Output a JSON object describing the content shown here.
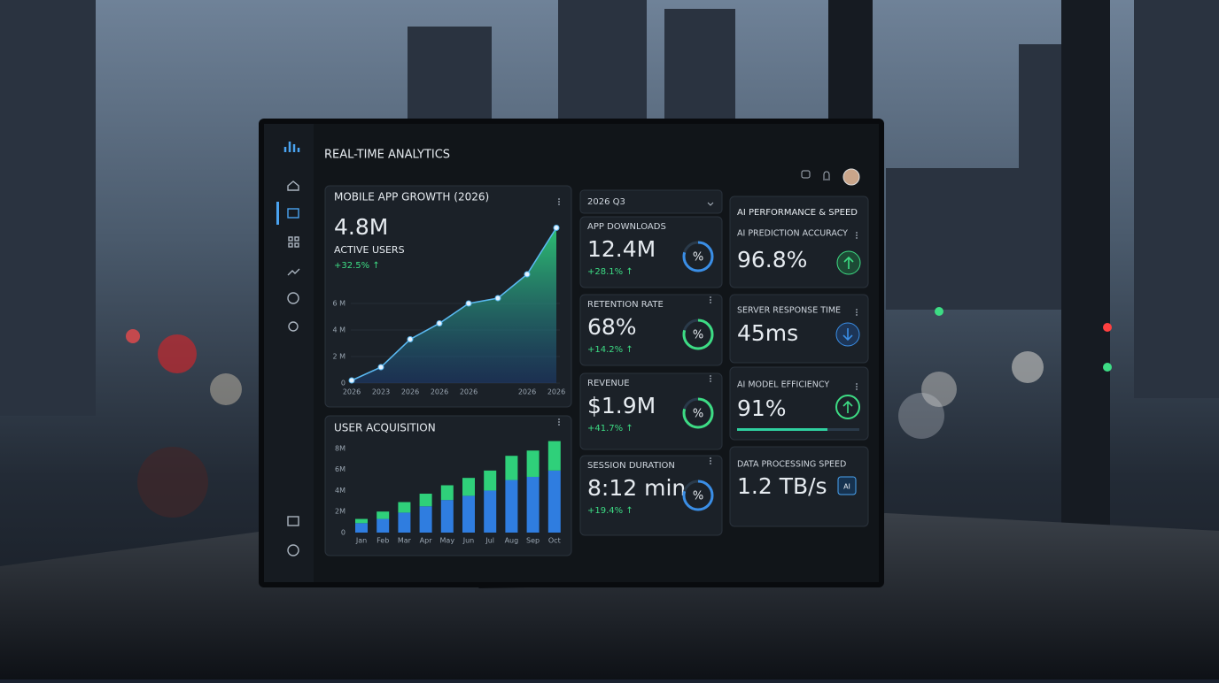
{
  "header": {
    "title": "REAL-TIME ANALYTICS"
  },
  "chart_data": [
    {
      "type": "line",
      "title": "MOBILE APP GROWTH (2026)",
      "annotations": [
        "4.8M",
        "ACTIVE USERS",
        "+32.5% ↑"
      ],
      "categories": [
        "2026",
        "2023",
        "2026",
        "2026",
        "2026",
        null,
        "2026",
        "2026"
      ],
      "series": [
        {
          "color": "#5ab8f0",
          "values": [
            0.2,
            1.2,
            3.3,
            4.5,
            6.0,
            6.4,
            8.2,
            11.7
          ]
        }
      ],
      "ylim": [
        0,
        12
      ],
      "yticks": [
        0,
        {
          "value": 2,
          "label": "2 M"
        },
        {
          "value": 4,
          "label": "4 M"
        },
        {
          "value": 6,
          "label": "6 M"
        }
      ]
    },
    {
      "type": "bar",
      "stacked": true,
      "title": "USER ACQUISITION",
      "categories": [
        "Jan",
        "Feb",
        "Mar",
        "Apr",
        "May",
        "Jun",
        "Jul",
        "Aug",
        "Sep",
        "Oct"
      ],
      "series": [
        {
          "color": "#2f7de0",
          "values": [
            0.9,
            1.3,
            1.9,
            2.5,
            3.1,
            3.5,
            4.0,
            5.0,
            5.3,
            5.9
          ]
        },
        {
          "color": "#2fd07a",
          "values": [
            0.4,
            0.7,
            1.0,
            1.2,
            1.4,
            1.7,
            1.9,
            2.3,
            2.5,
            2.8
          ]
        }
      ],
      "ylim": [
        0,
        9
      ],
      "yticks": [
        0,
        {
          "value": 2,
          "label": "2M"
        },
        {
          "value": 4,
          "label": "4M"
        },
        {
          "value": 6,
          "label": "6M"
        },
        {
          "value": 8,
          "label": "8M"
        }
      ]
    }
  ],
  "dashboard": {
    "period": "2026 Q3",
    "gauge_symbol": "%",
    "chip_label": "AI",
    "kpis": [
      {
        "label": "APP DOWNLOADS",
        "value": "12.4M",
        "change": "+28.1% ↑"
      },
      {
        "label": "RETENTION RATE",
        "value": "68%",
        "change": "+14.2% ↑"
      },
      {
        "label": "REVENUE",
        "value": "$1.9M",
        "change": "+41.7% ↑"
      },
      {
        "label": "SESSION DURATION",
        "value": "8:12 min",
        "change": "+19.4% ↑"
      }
    ],
    "ai": {
      "title": "AI PERFORMANCE & SPEED",
      "metrics": [
        {
          "label": "AI PREDICTION ACCURACY",
          "value": "96.8%"
        },
        {
          "label": "SERVER RESPONSE TIME",
          "value": "45ms"
        },
        {
          "label": "AI MODEL EFFICIENCY",
          "value": "91%"
        },
        {
          "label": "DATA PROCESSING SPEED",
          "value": "1.2 TB/s"
        }
      ]
    }
  }
}
